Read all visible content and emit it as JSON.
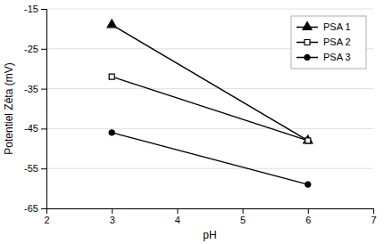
{
  "chart_data": {
    "type": "line",
    "xlabel": "pH",
    "ylabel": "Potentiel Zêta (mV)",
    "x": [
      3,
      6
    ],
    "series": [
      {
        "name": "PSA 1",
        "color": "#000000",
        "marker": "triangle",
        "values": [
          -19,
          -48
        ]
      },
      {
        "name": "PSA 2",
        "color": "#000000",
        "marker": "square-open",
        "values": [
          -32,
          -48
        ]
      },
      {
        "name": "PSA 3",
        "color": "#000000",
        "marker": "circle",
        "values": [
          -46,
          -59
        ]
      }
    ],
    "xlim": [
      2,
      7
    ],
    "ylim": [
      -65,
      -15
    ],
    "xticks": [
      2,
      3,
      4,
      5,
      6,
      7
    ],
    "yticks": [
      -65,
      -55,
      -45,
      -35,
      -25,
      -15
    ],
    "grid": true,
    "legend": "upper right"
  }
}
